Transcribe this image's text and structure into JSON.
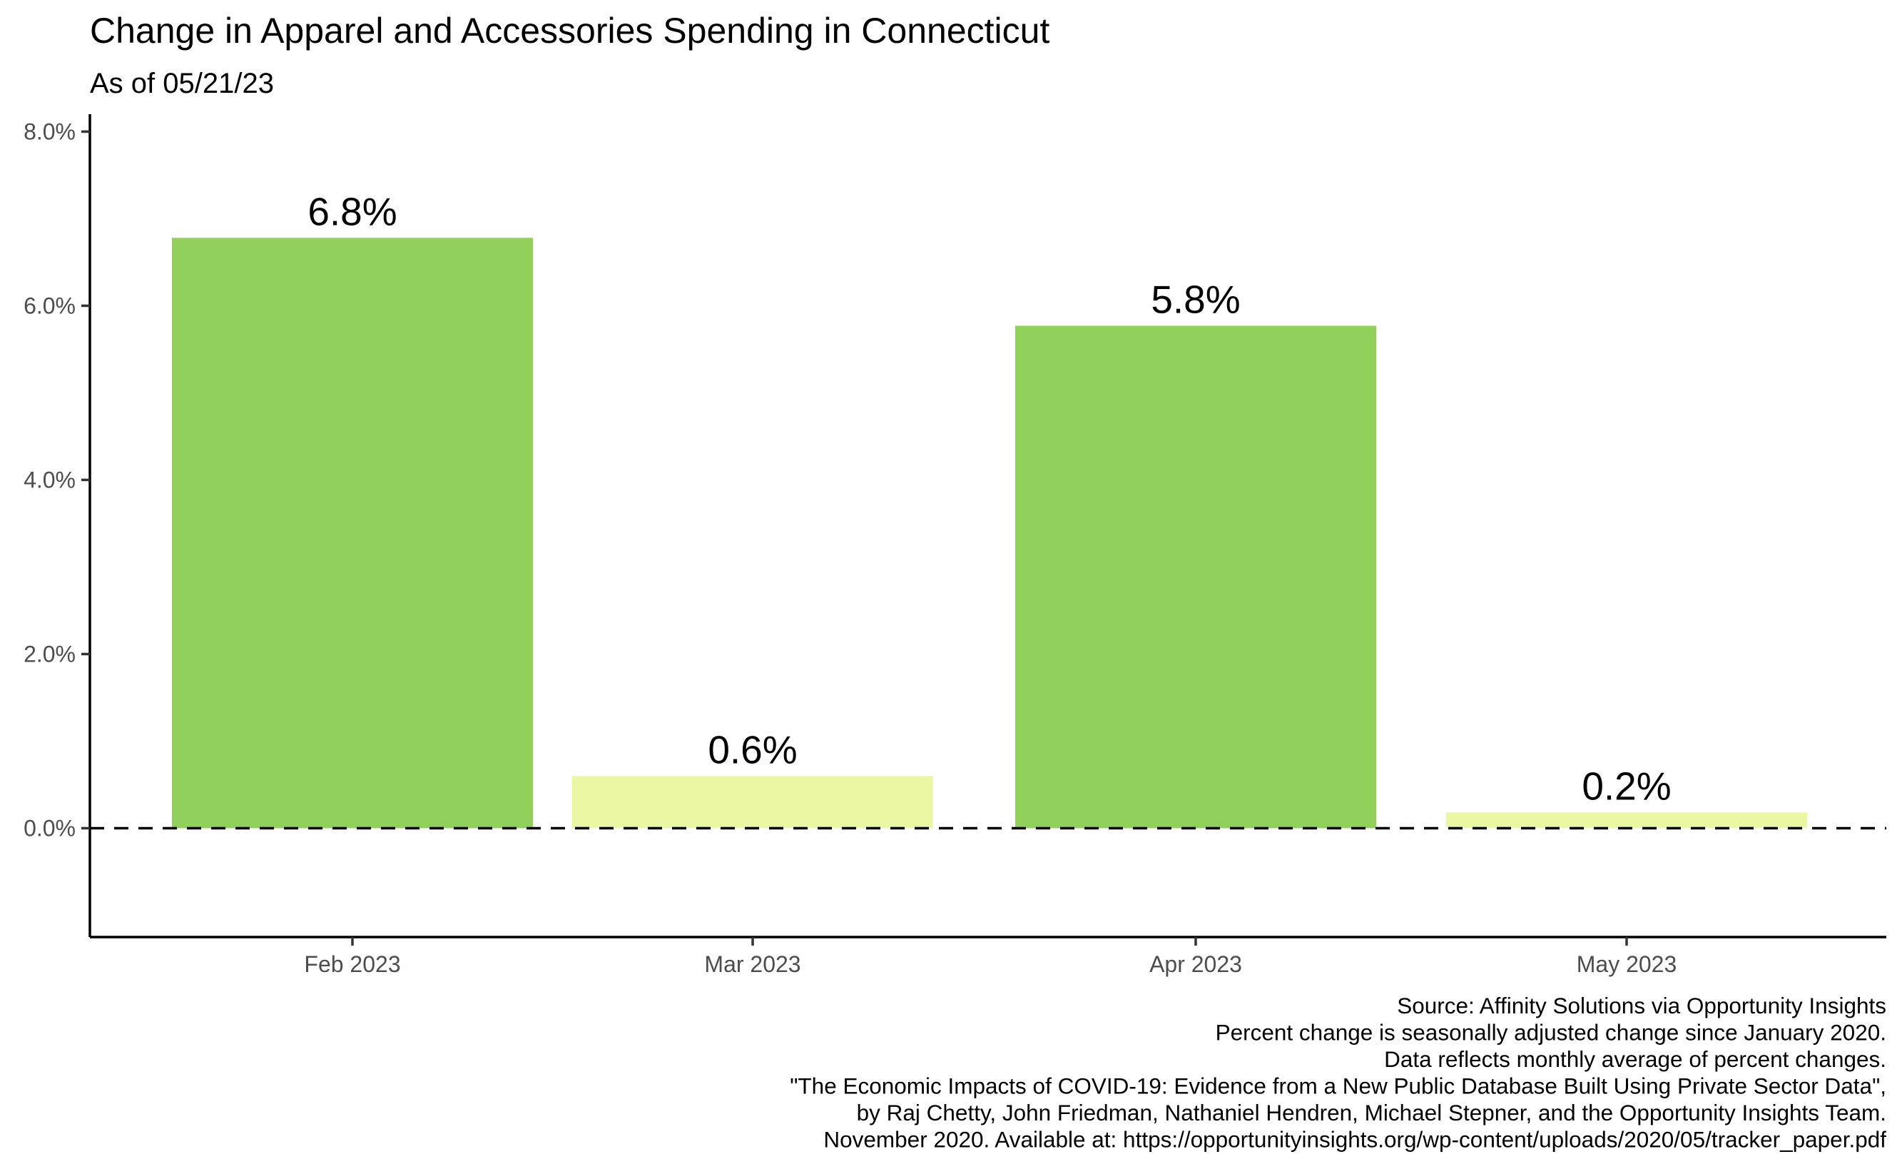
{
  "chart_data": {
    "type": "bar",
    "title": "Change in Apparel and Accessories Spending in Connecticut",
    "subtitle": "As of 05/21/23",
    "categories": [
      "Feb 2023",
      "Mar 2023",
      "Apr 2023",
      "May 2023"
    ],
    "values": [
      6.78,
      0.6,
      5.77,
      0.18
    ],
    "value_labels": [
      "6.8%",
      "0.6%",
      "5.8%",
      "0.2%"
    ],
    "bar_colors": [
      "#91d05b",
      "#ebf7a3",
      "#91d05b",
      "#ebf7a3"
    ],
    "xlabel": "",
    "ylabel": "",
    "ylim": [
      -1.25,
      8.2
    ],
    "yticks": [
      0,
      2,
      4,
      6,
      8
    ],
    "ytick_labels": [
      "0.0%",
      "2.0%",
      "4.0%",
      "6.0%",
      "8.0%"
    ],
    "reference_line": {
      "y": 0,
      "style": "dashed",
      "color": "#000000"
    },
    "grid": false,
    "legend": "none",
    "caption": [
      "Source: Affinity Solutions via Opportunity Insights",
      "Percent change is seasonally adjusted change since January 2020.",
      "Data reflects monthly average of percent changes.",
      "\"The Economic Impacts of COVID-19: Evidence from a New Public Database Built Using Private Sector Data\",",
      "by Raj Chetty, John Friedman, Nathaniel Hendren, Michael Stepner, and the Opportunity Insights Team.",
      "November 2020. Available at: https://opportunityinsights.org/wp-content/uploads/2020/05/tracker_paper.pdf"
    ]
  }
}
